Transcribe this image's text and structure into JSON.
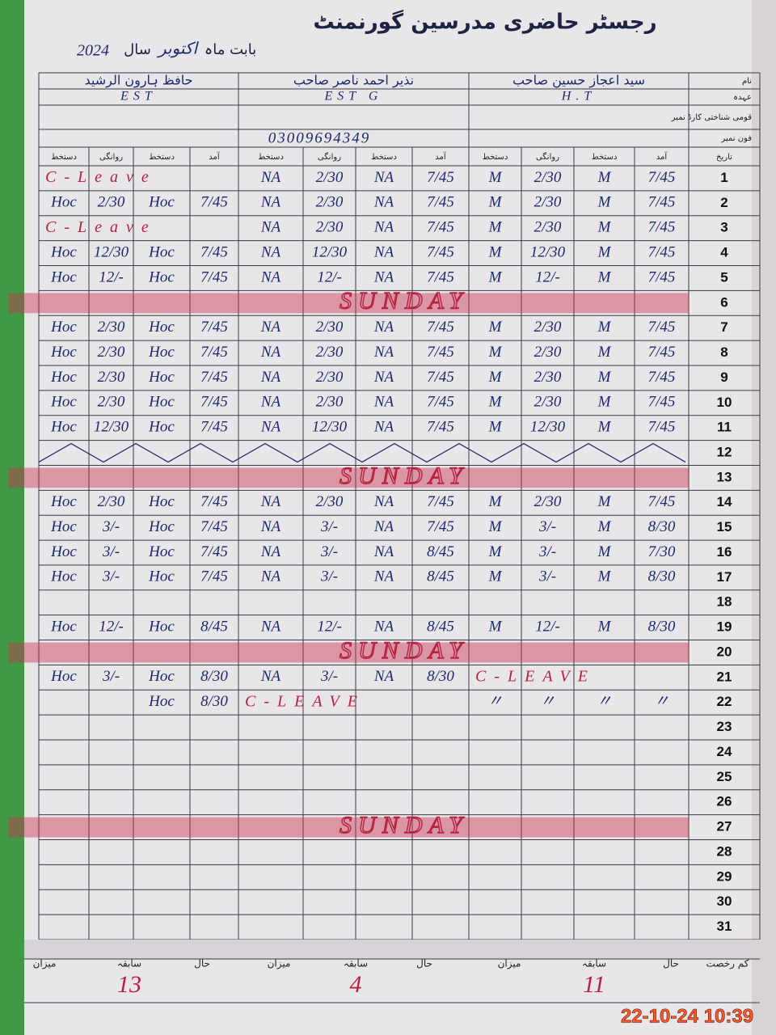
{
  "header": {
    "title": "رجسٹر حاضری مدرسین گورنمنٹ",
    "month_label": "بابت ماہ",
    "month": "اکتوبر",
    "year_label": "سال",
    "year": "2024"
  },
  "field_labels": [
    "نام",
    "عہدہ",
    "قومی شناختی کارڈ نمبر",
    "فون نمبر"
  ],
  "teachers": [
    {
      "name": "سید اعجاز حسین صاحب",
      "designation": "H.T"
    },
    {
      "name": "نذیر احمد ناصر صاحب",
      "designation": "EST G",
      "phone": "03009694349"
    },
    {
      "name": "حافظ ہارون الرشید",
      "designation": "EST"
    }
  ],
  "table": {
    "column_headers": [
      "دستخط",
      "روانگی",
      "دستخط",
      "آمد",
      "دستخط",
      "روانگی",
      "دستخط",
      "آمد",
      "دستخط",
      "روانگی",
      "دستخط",
      "آمد",
      "تاریخ"
    ],
    "rows": [
      {
        "day": 1,
        "cells": [
          "C-Leave",
          null,
          null,
          null,
          "NA",
          "2/30",
          "NA",
          "7/45",
          "M",
          "2/30",
          "M",
          "7/45"
        ]
      },
      {
        "day": 2,
        "cells": [
          "Hoc",
          "2/30",
          "Hoc",
          "7/45",
          "NA",
          "2/30",
          "NA",
          "7/45",
          "M",
          "2/30",
          "M",
          "7/45"
        ]
      },
      {
        "day": 3,
        "cells": [
          "C-Leave",
          null,
          null,
          null,
          "NA",
          "2/30",
          "NA",
          "7/45",
          "M",
          "2/30",
          "M",
          "7/45"
        ]
      },
      {
        "day": 4,
        "cells": [
          "Hoc",
          "12/30",
          "Hoc",
          "7/45",
          "NA",
          "12/30",
          "NA",
          "7/45",
          "M",
          "12/30",
          "M",
          "7/45"
        ]
      },
      {
        "day": 5,
        "cells": [
          "Hoc",
          "12/-",
          "Hoc",
          "7/45",
          "NA",
          "12/-",
          "NA",
          "7/45",
          "M",
          "12/-",
          "M",
          "7/45"
        ]
      },
      {
        "day": 6,
        "note": "SUNDAY"
      },
      {
        "day": 7,
        "cells": [
          "Hoc",
          "2/30",
          "Hoc",
          "7/45",
          "NA",
          "2/30",
          "NA",
          "7/45",
          "M",
          "2/30",
          "M",
          "7/45"
        ]
      },
      {
        "day": 8,
        "cells": [
          "Hoc",
          "2/30",
          "Hoc",
          "7/45",
          "NA",
          "2/30",
          "NA",
          "7/45",
          "M",
          "2/30",
          "M",
          "7/45"
        ]
      },
      {
        "day": 9,
        "cells": [
          "Hoc",
          "2/30",
          "Hoc",
          "7/45",
          "NA",
          "2/30",
          "NA",
          "7/45",
          "M",
          "2/30",
          "M",
          "7/45"
        ]
      },
      {
        "day": 10,
        "cells": [
          "Hoc",
          "2/30",
          "Hoc",
          "7/45",
          "NA",
          "2/30",
          "NA",
          "7/45",
          "M",
          "2/30",
          "M",
          "7/45"
        ]
      },
      {
        "day": 11,
        "cells": [
          "Hoc",
          "12/30",
          "Hoc",
          "7/45",
          "NA",
          "12/30",
          "NA",
          "7/45",
          "M",
          "12/30",
          "M",
          "7/45"
        ]
      },
      {
        "day": 12,
        "crossed": true
      },
      {
        "day": 13,
        "note": "SUNDAY"
      },
      {
        "day": 14,
        "cells": [
          "Hoc",
          "2/30",
          "Hoc",
          "7/45",
          "NA",
          "2/30",
          "NA",
          "7/45",
          "M",
          "2/30",
          "M",
          "7/45"
        ]
      },
      {
        "day": 15,
        "cells": [
          "Hoc",
          "3/-",
          "Hoc",
          "7/45",
          "NA",
          "3/-",
          "NA",
          "7/45",
          "M",
          "3/-",
          "M",
          "8/30"
        ]
      },
      {
        "day": 16,
        "cells": [
          "Hoc",
          "3/-",
          "Hoc",
          "7/45",
          "NA",
          "3/-",
          "NA",
          "8/45",
          "M",
          "3/-",
          "M",
          "7/30"
        ]
      },
      {
        "day": 17,
        "cells": [
          "Hoc",
          "3/-",
          "Hoc",
          "7/45",
          "NA",
          "3/-",
          "NA",
          "8/45",
          "M",
          "3/-",
          "M",
          "8/30"
        ]
      },
      {
        "day": 18
      },
      {
        "day": 19,
        "cells": [
          "Hoc",
          "12/-",
          "Hoc",
          "8/45",
          "NA",
          "12/-",
          "NA",
          "8/45",
          "M",
          "12/-",
          "M",
          "8/30"
        ]
      },
      {
        "day": 20,
        "note": "SUNDAY"
      },
      {
        "day": 21,
        "cells": [
          "Hoc",
          "3/-",
          "Hoc",
          "8/30",
          "NA",
          "3/-",
          "NA",
          "8/30",
          "C-LEAVE",
          null,
          null,
          null
        ]
      },
      {
        "day": 22,
        "cells": [
          null,
          null,
          "Hoc",
          "8/30",
          "C-LEAVE",
          null,
          null,
          null,
          "〃",
          "〃",
          "〃",
          "〃"
        ]
      },
      {
        "day": 23
      },
      {
        "day": 24
      },
      {
        "day": 25
      },
      {
        "day": 26
      },
      {
        "day": 27,
        "note": "SUNDAY"
      },
      {
        "day": 28
      },
      {
        "day": 29
      },
      {
        "day": 30
      },
      {
        "day": 31
      }
    ]
  },
  "footer": [
    {
      "label": "میزان"
    },
    {
      "label": "سابقہ",
      "value": 13
    },
    {
      "label": "حال"
    },
    {
      "label": "میزان"
    },
    {
      "label": "سابقہ",
      "value": 4
    },
    {
      "label": "حال"
    },
    {
      "label": "میزان"
    },
    {
      "label": "سابقہ",
      "value": 11
    },
    {
      "label": "حال"
    },
    {
      "label": "کم رخصت"
    }
  ],
  "timestamp": "22-10-24 10:39"
}
